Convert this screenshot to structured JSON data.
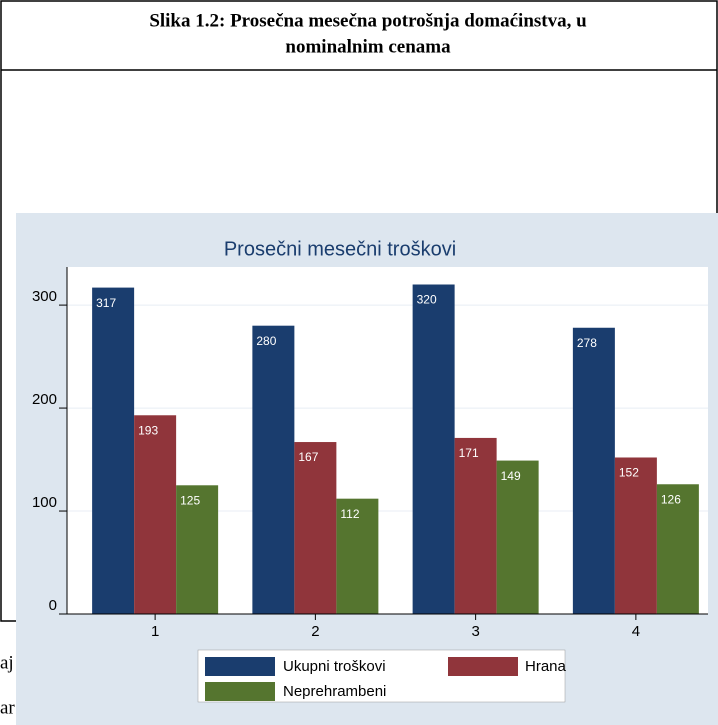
{
  "document": {
    "caption": [
      "Slika 1.2:  Prosečna mesečna potrošnja domaćinstva, u",
      "nominalnim cenama"
    ],
    "fragments": [
      "aj",
      "ar"
    ]
  },
  "chart_data": {
    "type": "bar",
    "title": "Prosečni mesečni troškovi",
    "categories": [
      "1",
      "2",
      "3",
      "4"
    ],
    "series": [
      {
        "name": "Ukupni troškovi",
        "color": "#1a3d6e",
        "values": [
          317,
          280,
          320,
          278
        ]
      },
      {
        "name": "Hrana",
        "color": "#90353b",
        "values": [
          193,
          167,
          171,
          152
        ]
      },
      {
        "name": "Neprehrambeni",
        "color": "#55752f",
        "values": [
          125,
          112,
          149,
          126
        ]
      }
    ],
    "ylim": [
      0,
      337
    ],
    "yticks": [
      0,
      100,
      200,
      300
    ],
    "grid": true,
    "value_labels_inside": true
  }
}
